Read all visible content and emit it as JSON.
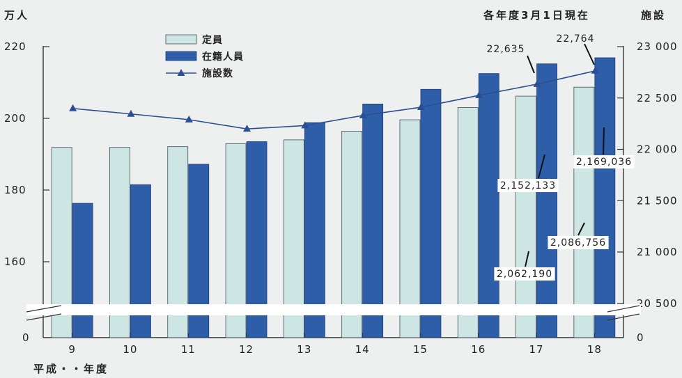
{
  "chart_data": {
    "type": "bar",
    "note": "各年度3月1日現在",
    "xlabel": "平成・・年度",
    "ylabel_left": "万人",
    "ylabel_right": "施設",
    "categories": [
      "9",
      "10",
      "11",
      "12",
      "13",
      "14",
      "15",
      "16",
      "17",
      "18"
    ],
    "series": [
      {
        "name": "定員",
        "kind": "bar",
        "axis": "left",
        "color": "#cde6e4",
        "values": [
          191.9,
          191.9,
          192.1,
          192.9,
          194.0,
          196.4,
          199.6,
          203.0,
          206.2,
          208.7
        ]
      },
      {
        "name": "在籍人員",
        "kind": "bar",
        "axis": "left",
        "color": "#2f5ea9",
        "values": [
          176.3,
          181.5,
          187.2,
          193.5,
          198.8,
          204.0,
          208.1,
          212.5,
          215.2,
          216.9
        ]
      },
      {
        "name": "施設数",
        "kind": "line",
        "axis": "right",
        "color": "#2c4f93",
        "values": [
          22398,
          22344,
          22289,
          22199,
          22231,
          22330,
          22410,
          22526,
          22635,
          22764
        ]
      }
    ],
    "yaxis_left": {
      "range": [
        150,
        220
      ],
      "ticks": [
        "160",
        "180",
        "200",
        "220"
      ],
      "ticks_values": [
        160,
        180,
        200,
        220
      ],
      "zero_label": "0"
    },
    "yaxis_right": {
      "range": [
        20200,
        23000
      ],
      "ticks": [
        "20 500",
        "21 000",
        "21 500",
        "22 000",
        "22 500",
        "23 000"
      ],
      "ticks_values": [
        20500,
        21000,
        21500,
        22000,
        22500,
        23000
      ],
      "zero_label": "0"
    },
    "annotations": [
      {
        "text": "22,635",
        "series": 2,
        "index": 8
      },
      {
        "text": "22,764",
        "series": 2,
        "index": 9
      },
      {
        "text": "2,062,190",
        "series": 0,
        "index": 8
      },
      {
        "text": "2,152,133",
        "series": 1,
        "index": 8
      },
      {
        "text": "2,086,756",
        "series": 0,
        "index": 9
      },
      {
        "text": "2,169,036",
        "series": 1,
        "index": 9
      }
    ]
  }
}
